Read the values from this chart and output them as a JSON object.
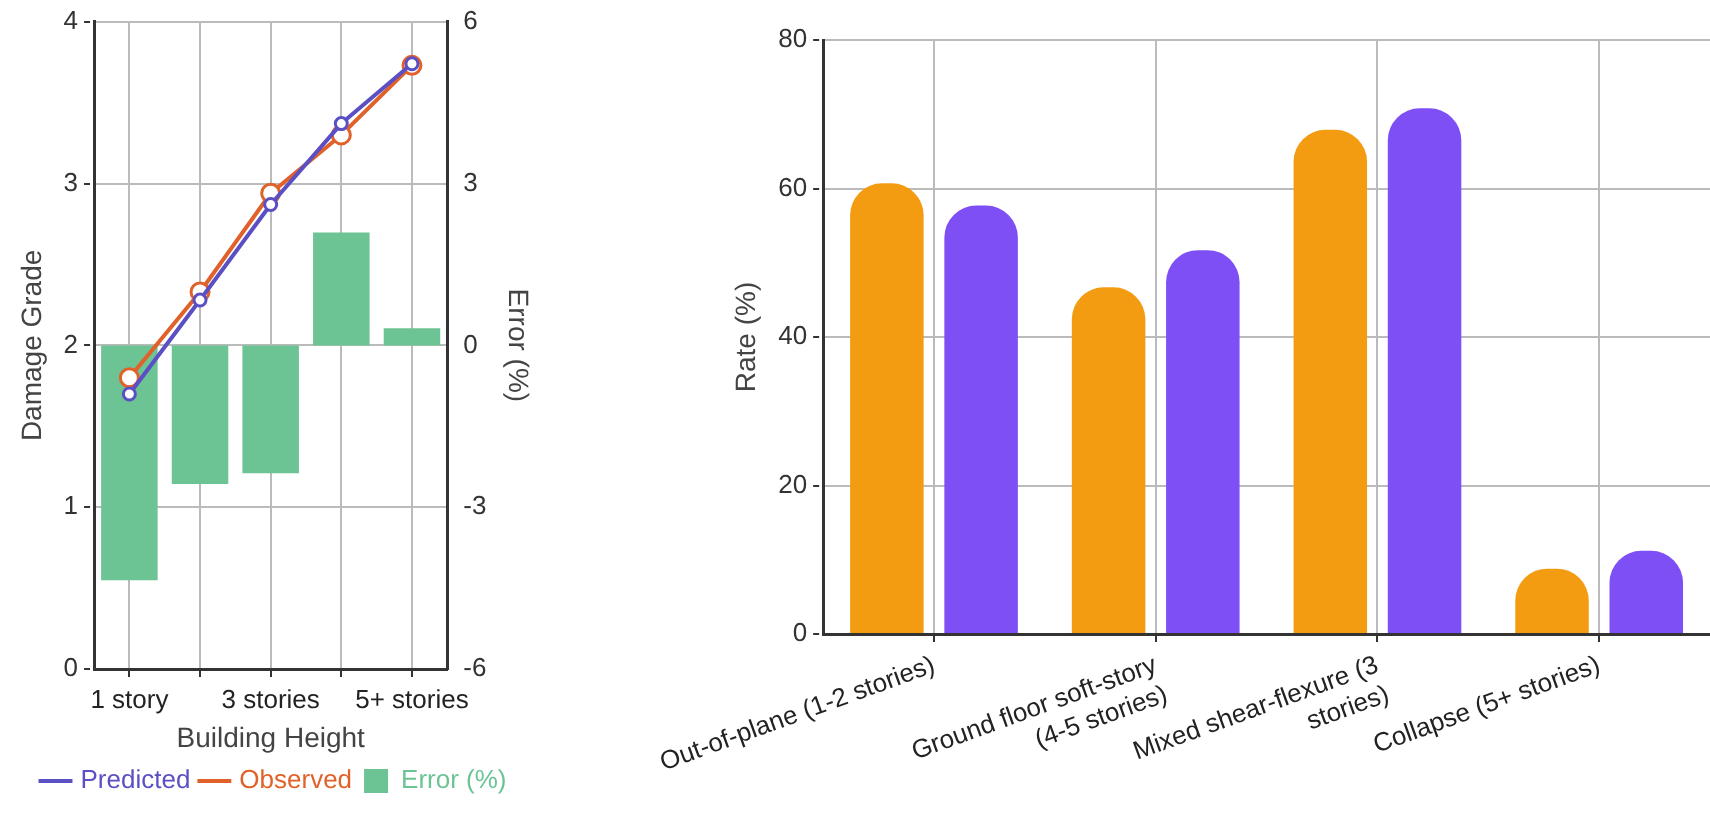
{
  "chart_data": [
    {
      "type": "line",
      "categories": [
        "1 story",
        null,
        "3 stories",
        null,
        "5+ stories"
      ],
      "xlabel": "Building Height",
      "ylabel": "Damage Grade",
      "y2label": "Error (%)",
      "ylim": [
        0,
        4
      ],
      "yticks": [
        0,
        1,
        2,
        3,
        4
      ],
      "y2lim": [
        -6,
        6
      ],
      "y2ticks": [
        -6,
        -3,
        0,
        3,
        6
      ],
      "grid": true,
      "legend": "bottom",
      "marker": "circle",
      "series": [
        {
          "name": "Predicted",
          "color": "#5b4fc4",
          "values": [
            1.7,
            2.28,
            2.87,
            3.37,
            3.74
          ]
        },
        {
          "name": "Observed",
          "color": "#e0622a",
          "values": [
            1.8,
            2.33,
            2.94,
            3.3,
            3.73
          ]
        },
        {
          "name": "Error (%)",
          "type": "bar",
          "axis": "y2",
          "color": "#6cc494",
          "values": [
            -4.35,
            -2.57,
            -2.37,
            2.09,
            0.32
          ]
        }
      ]
    },
    {
      "type": "bar",
      "categories": [
        "Out-of-plane (1-2 stories)",
        "Ground floor soft-story (4-5 stories)",
        "Mixed shear-flexure (3 stories)",
        "Collapse (5+ stories)"
      ],
      "ylabel": "Rate (%)",
      "ylim": [
        0,
        80
      ],
      "yticks": [
        0,
        20,
        40,
        60,
        80
      ],
      "grid": true,
      "series": [
        {
          "color": "#f39c12",
          "values": [
            60.7,
            46.7,
            67.9,
            8.8
          ]
        },
        {
          "color": "#7e4ff5",
          "values": [
            57.7,
            51.7,
            70.8,
            11.2
          ]
        }
      ]
    }
  ]
}
